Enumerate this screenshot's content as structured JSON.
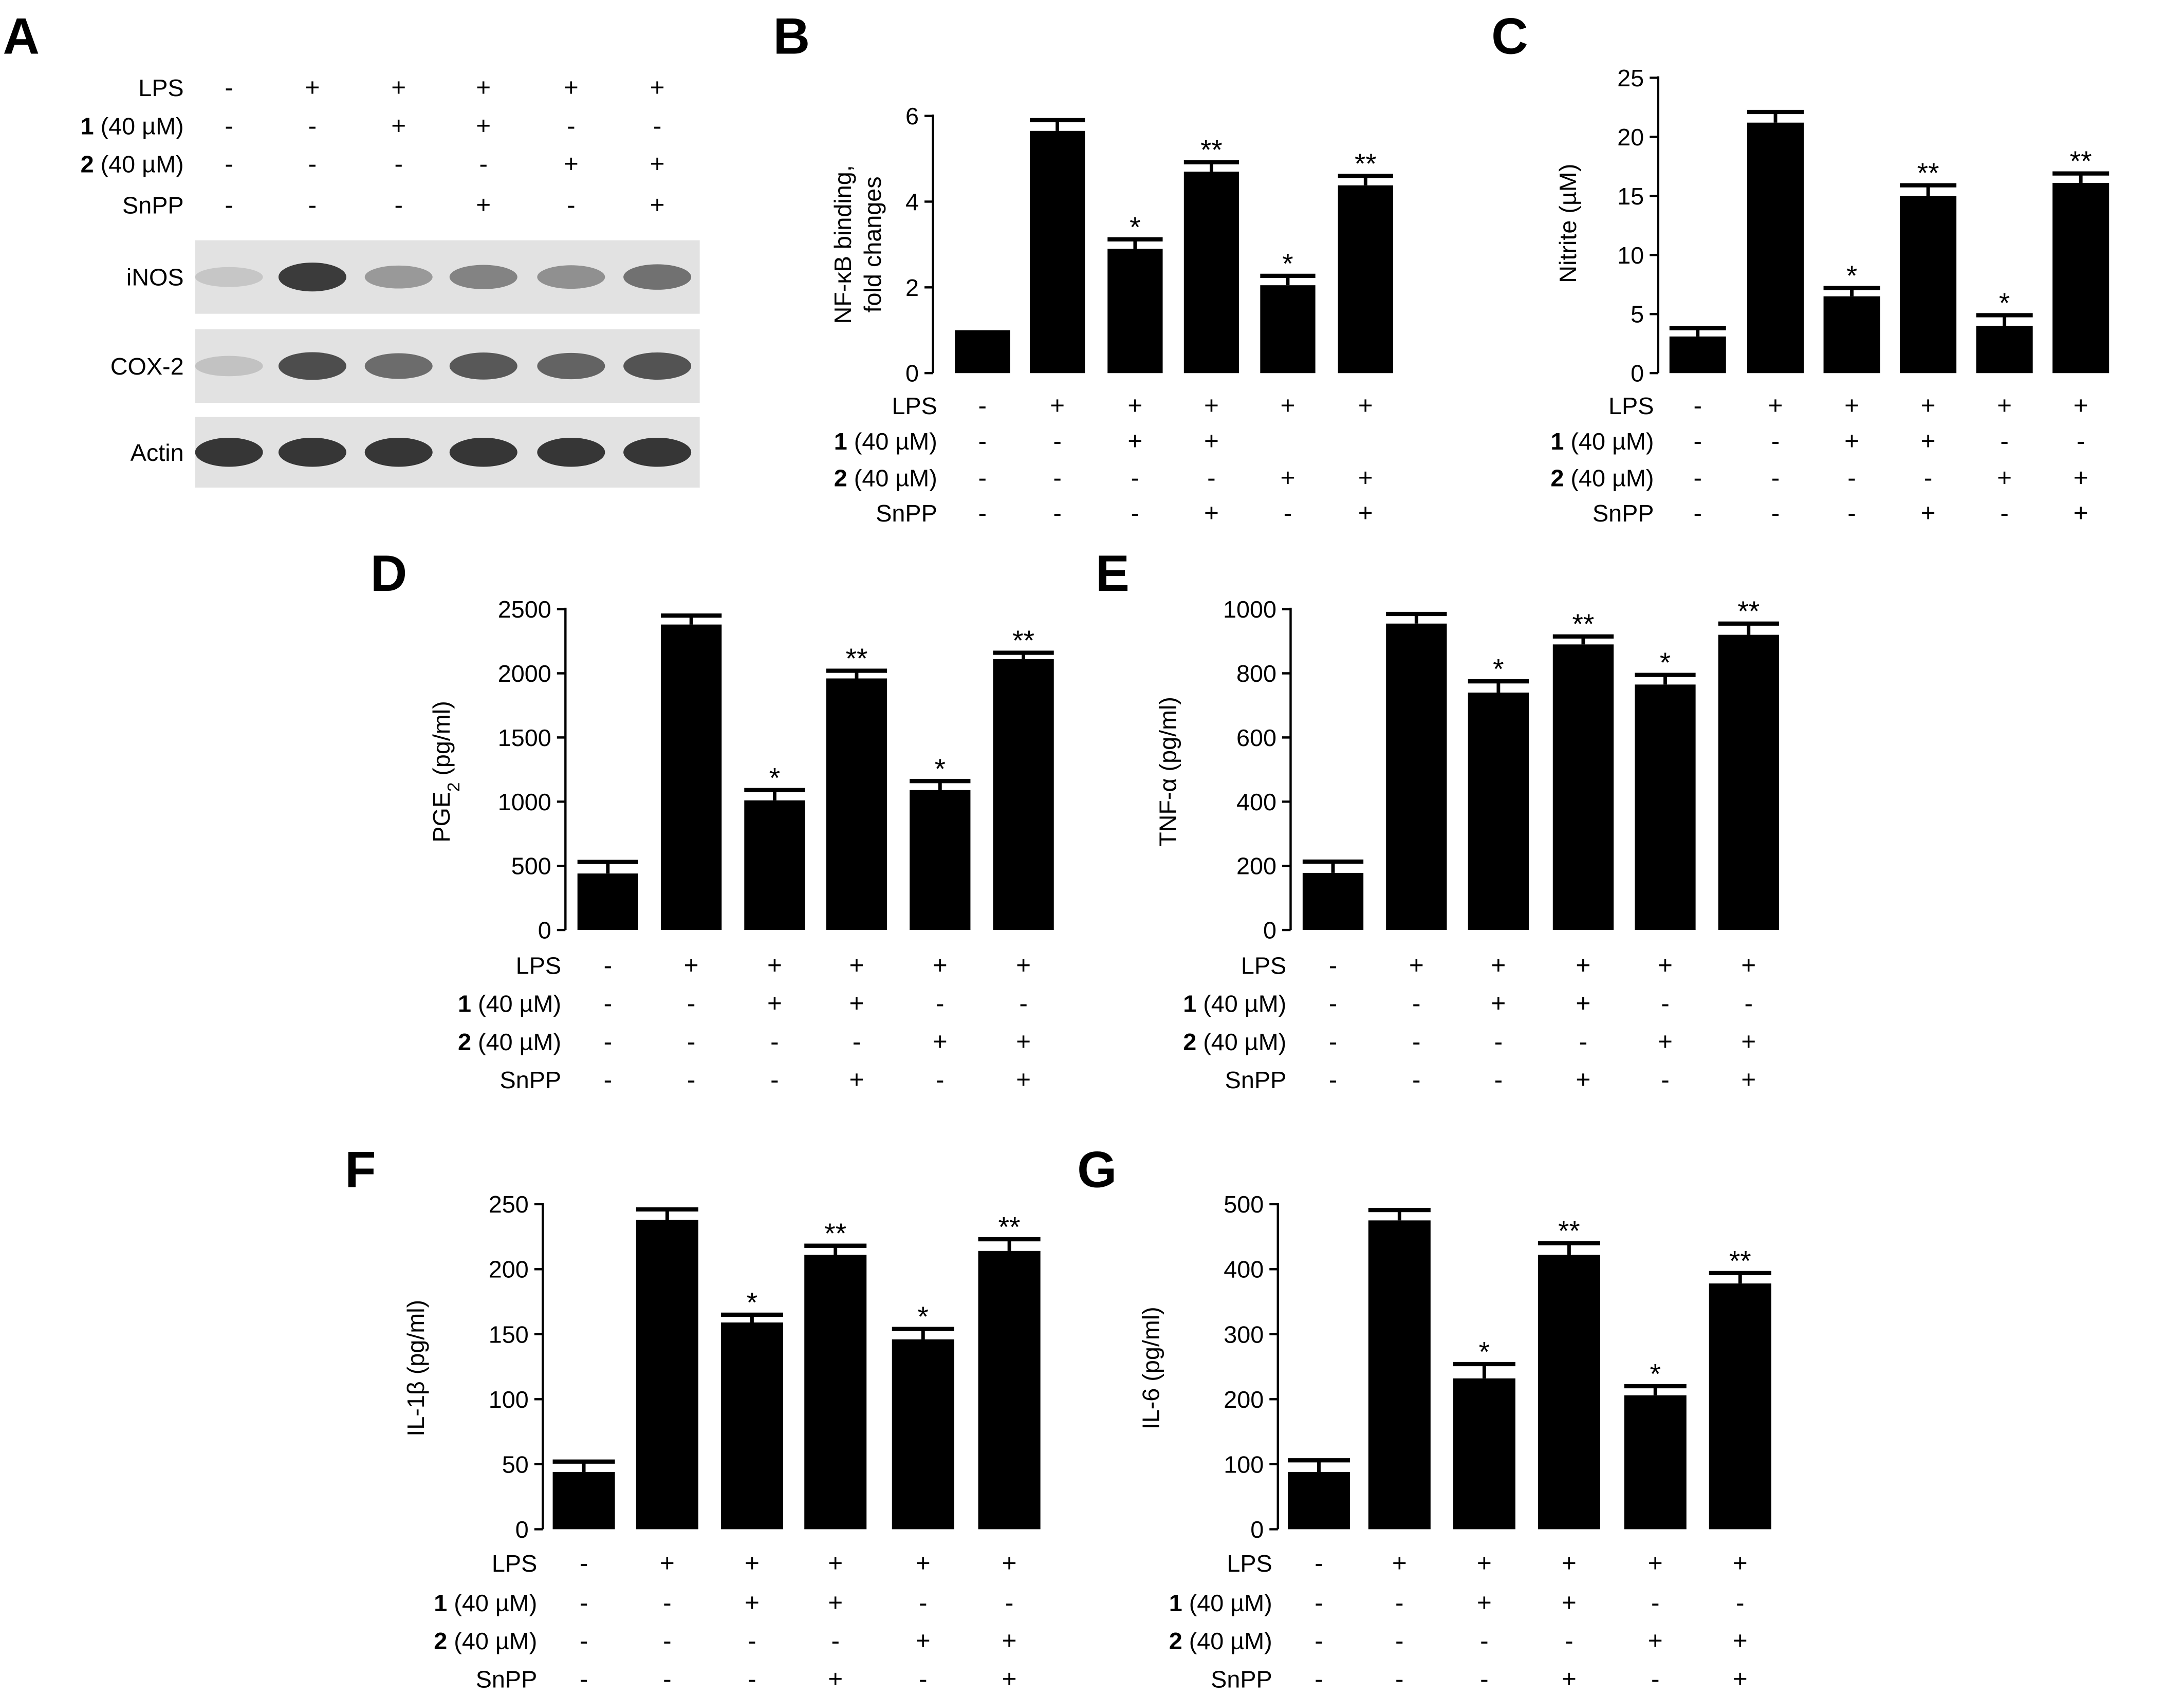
{
  "figure": {
    "conditions": {
      "row_labels": [
        {
          "bold": "",
          "text": "LPS"
        },
        {
          "bold": "1",
          "text": " (40 µM)"
        },
        {
          "bold": "2",
          "text": " (40 µM)"
        },
        {
          "bold": "",
          "text": "SnPP"
        }
      ],
      "signs": [
        [
          "-",
          "+",
          "+",
          "+",
          "+",
          "+"
        ],
        [
          "-",
          "-",
          "+",
          "+",
          "-",
          "-"
        ],
        [
          "-",
          "-",
          "-",
          "-",
          "+",
          "+"
        ],
        [
          "-",
          "-",
          "-",
          "+",
          "-",
          "+"
        ]
      ],
      "signs_B": [
        [
          "-",
          "+",
          "+",
          "+",
          "+",
          "+"
        ],
        [
          "-",
          "-",
          "+",
          "+",
          "",
          ""
        ],
        [
          "-",
          "-",
          "-",
          "-",
          "+",
          "+"
        ],
        [
          "-",
          "-",
          "-",
          "+",
          "-",
          "+"
        ]
      ]
    },
    "western_blot": {
      "panel_letter": "A",
      "bands": [
        "iNOS",
        "COX-2",
        "Actin"
      ],
      "intensity": [
        [
          0.02,
          0.8,
          0.28,
          0.4,
          0.33,
          0.5
        ],
        [
          0.05,
          0.7,
          0.52,
          0.64,
          0.58,
          0.66
        ],
        [
          0.82,
          0.82,
          0.82,
          0.82,
          0.82,
          0.82
        ]
      ]
    }
  },
  "chart_data": [
    {
      "panel": "B",
      "type": "bar",
      "ylabel_lines": [
        "NF-κB binding,",
        "fold changes"
      ],
      "ylim": [
        0,
        6
      ],
      "yticks": [
        0,
        2,
        4,
        6
      ],
      "values": [
        1.0,
        5.65,
        2.9,
        4.7,
        2.05,
        4.38
      ],
      "errors": [
        0,
        0.25,
        0.22,
        0.22,
        0.22,
        0.22
      ],
      "significance": [
        "",
        "",
        "*",
        "**",
        "*",
        "**"
      ]
    },
    {
      "panel": "C",
      "type": "bar",
      "ylabel_lines": [
        "Nitrite (µM)"
      ],
      "ylim": [
        0,
        25
      ],
      "yticks": [
        0,
        5,
        10,
        15,
        20,
        25
      ],
      "values": [
        3.1,
        21.2,
        6.5,
        15.0,
        4.0,
        16.1
      ],
      "errors": [
        0.7,
        0.9,
        0.7,
        0.9,
        0.9,
        0.8
      ],
      "significance": [
        "",
        "",
        "*",
        "**",
        "*",
        "**"
      ]
    },
    {
      "panel": "D",
      "type": "bar",
      "ylabel_lines": [
        "PGE",
        "2",
        " (pg/ml)"
      ],
      "ylabel_subscript": true,
      "ylim": [
        0,
        2500
      ],
      "yticks": [
        0,
        500,
        1000,
        1500,
        2000,
        2500
      ],
      "values": [
        440,
        2380,
        1010,
        1960,
        1090,
        2110
      ],
      "errors": [
        90,
        70,
        80,
        60,
        70,
        50
      ],
      "significance": [
        "",
        "",
        "*",
        "**",
        "*",
        "**"
      ]
    },
    {
      "panel": "E",
      "type": "bar",
      "ylabel_lines": [
        "TNF-α (pg/ml)"
      ],
      "ylim": [
        0,
        1000
      ],
      "yticks": [
        0,
        200,
        400,
        600,
        800,
        1000
      ],
      "values": [
        178,
        955,
        740,
        890,
        765,
        920
      ],
      "errors": [
        35,
        30,
        35,
        25,
        30,
        35
      ],
      "significance": [
        "",
        "",
        "*",
        "**",
        "*",
        "**"
      ]
    },
    {
      "panel": "F",
      "type": "bar",
      "ylabel_lines": [
        "IL-1β (pg/ml)"
      ],
      "ylim": [
        0,
        250
      ],
      "yticks": [
        0,
        50,
        100,
        150,
        200,
        250
      ],
      "values": [
        44,
        238,
        159,
        211,
        146,
        214
      ],
      "errors": [
        8,
        8,
        6,
        7,
        8,
        9
      ],
      "significance": [
        "",
        "",
        "*",
        "**",
        "*",
        "**"
      ]
    },
    {
      "panel": "G",
      "type": "bar",
      "ylabel_lines": [
        "IL-6 (pg/ml)"
      ],
      "ylim": [
        0,
        500
      ],
      "yticks": [
        0,
        100,
        200,
        300,
        400,
        500
      ],
      "values": [
        88,
        475,
        232,
        422,
        206,
        378
      ],
      "errors": [
        18,
        16,
        22,
        18,
        14,
        16
      ],
      "significance": [
        "",
        "",
        "*",
        "**",
        "*",
        "**"
      ]
    }
  ]
}
